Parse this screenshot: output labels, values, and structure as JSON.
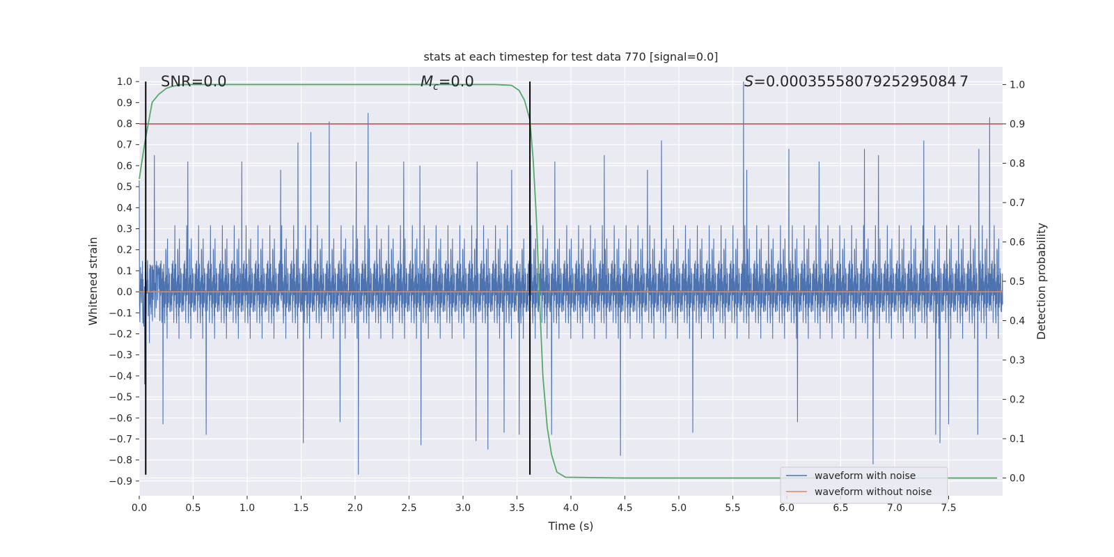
{
  "chart_data": {
    "type": "line",
    "title": "stats at each timestep for test data 770 [signal=0.0]",
    "xlabel": "Time (s)",
    "ylabel": "Whitened strain",
    "y2label": "Detection probability",
    "xlim": [
      0.0,
      8.0
    ],
    "ylim": [
      -0.97,
      1.07
    ],
    "y2lim": [
      -0.045,
      1.045
    ],
    "xticks": [
      "0.0",
      "0.5",
      "1.0",
      "1.5",
      "2.0",
      "2.5",
      "3.0",
      "3.5",
      "4.0",
      "4.5",
      "5.0",
      "5.5",
      "6.0",
      "6.5",
      "7.0",
      "7.5"
    ],
    "yticks": [
      "1.0",
      "0.9",
      "0.8",
      "0.7",
      "0.6",
      "0.5",
      "0.4",
      "0.3",
      "0.2",
      "0.1",
      "0.0",
      "-0.1",
      "-0.2",
      "-0.3",
      "-0.4",
      "-0.5",
      "-0.6",
      "-0.7",
      "-0.8",
      "-0.9"
    ],
    "y2ticks": [
      "1.0",
      "0.9",
      "0.8",
      "0.7",
      "0.6",
      "0.5",
      "0.4",
      "0.3",
      "0.2",
      "0.1",
      "0.0"
    ],
    "grid": true,
    "legend_position": "lower-right",
    "annotations": {
      "snr": "SNR=0.0",
      "mc_symbol": "M",
      "mc_sub": "c",
      "mc_value": "=0.0",
      "s_symbol": "S",
      "s_value": "=0.0003555807925295084 7"
    },
    "colors": {
      "noise": "#4c72b0",
      "clean": "#dd8452",
      "probability": "#55a868",
      "threshold": "#c44e52",
      "markers": "#000000",
      "background": "#eaeaf2",
      "grid": "#ffffff"
    },
    "series": [
      {
        "name": "waveform with noise",
        "axis": "left",
        "description_range": [
          -0.87,
          1.0
        ],
        "peaks": [
          [
            0.0,
            0.53
          ],
          [
            0.14,
            0.65
          ],
          [
            0.45,
            0.62
          ],
          [
            0.95,
            0.62
          ],
          [
            1.31,
            0.58
          ],
          [
            1.47,
            0.71
          ],
          [
            1.59,
            0.76
          ],
          [
            1.76,
            0.81
          ],
          [
            2.01,
            0.62
          ],
          [
            2.12,
            0.85
          ],
          [
            2.45,
            0.62
          ],
          [
            2.6,
            0.6
          ],
          [
            3.13,
            0.62
          ],
          [
            3.45,
            0.58
          ],
          [
            3.85,
            0.62
          ],
          [
            4.31,
            0.65
          ],
          [
            4.71,
            0.58
          ],
          [
            4.84,
            0.72
          ],
          [
            5.6,
            1.0
          ],
          [
            5.63,
            0.58
          ],
          [
            6.02,
            0.68
          ],
          [
            6.3,
            0.62
          ],
          [
            6.72,
            0.68
          ],
          [
            6.85,
            0.65
          ],
          [
            7.27,
            0.72
          ],
          [
            7.5,
            0.58
          ],
          [
            7.78,
            0.68
          ],
          [
            7.88,
            0.83
          ]
        ],
        "troughs": [
          [
            0.05,
            -0.44
          ],
          [
            0.22,
            -0.63
          ],
          [
            0.62,
            -0.68
          ],
          [
            1.52,
            -0.72
          ],
          [
            1.86,
            -0.62
          ],
          [
            2.03,
            -0.87
          ],
          [
            2.61,
            -0.73
          ],
          [
            3.12,
            -0.71
          ],
          [
            3.23,
            -0.75
          ],
          [
            3.38,
            -0.67
          ],
          [
            3.52,
            -0.68
          ],
          [
            3.82,
            -0.68
          ],
          [
            4.46,
            -0.78
          ],
          [
            5.13,
            -0.67
          ],
          [
            6.1,
            -0.62
          ],
          [
            6.8,
            -0.82
          ],
          [
            7.38,
            -0.68
          ],
          [
            7.42,
            -0.72
          ],
          [
            7.5,
            -0.63
          ],
          [
            7.77,
            -0.68
          ]
        ]
      },
      {
        "name": "waveform without noise",
        "axis": "left",
        "x": [
          0.0,
          8.0
        ],
        "y": [
          0.0,
          0.0
        ]
      },
      {
        "name": "",
        "axis": "right",
        "x": [
          0.0,
          0.05,
          0.07,
          0.12,
          0.18,
          0.25,
          0.3,
          0.4,
          0.6,
          1.0,
          2.0,
          3.0,
          3.3,
          3.45,
          3.52,
          3.57,
          3.62,
          3.65,
          3.68,
          3.71,
          3.74,
          3.78,
          3.82,
          3.87,
          3.95,
          4.5,
          6.0,
          7.0,
          7.95
        ],
        "y": [
          0.76,
          0.85,
          0.88,
          0.955,
          0.975,
          0.99,
          0.995,
          1.0,
          1.0,
          1.0,
          1.0,
          1.0,
          1.0,
          0.998,
          0.985,
          0.96,
          0.91,
          0.81,
          0.66,
          0.45,
          0.26,
          0.13,
          0.06,
          0.015,
          0.002,
          0.0,
          0.0,
          0.0,
          0.0
        ]
      },
      {
        "name": "",
        "axis": "right",
        "x": [
          0.0,
          8.0
        ],
        "y": [
          0.9,
          0.9
        ]
      }
    ],
    "vertical_lines": [
      0.06,
      3.62
    ],
    "legend": [
      "waveform with noise",
      "waveform without noise"
    ]
  }
}
